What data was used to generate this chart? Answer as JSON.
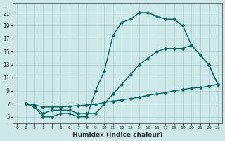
{
  "xlabel": "Humidex (Indice chaleur)",
  "bg_color": "#cce8e8",
  "line_color": "#006666",
  "grid_color": "#aacccc",
  "xlim": [
    -0.5,
    23.5
  ],
  "ylim": [
    4,
    22.5
  ],
  "xticks": [
    0,
    1,
    2,
    3,
    4,
    5,
    6,
    7,
    8,
    9,
    10,
    11,
    12,
    13,
    14,
    15,
    16,
    17,
    18,
    19,
    20,
    21,
    22,
    23
  ],
  "yticks": [
    5,
    7,
    9,
    11,
    13,
    15,
    17,
    19,
    21
  ],
  "curve1_x": [
    1,
    2,
    3,
    4,
    5,
    6,
    7,
    8,
    9,
    10,
    11,
    12,
    13,
    14,
    15,
    16,
    17,
    18,
    19,
    20,
    21,
    22,
    23
  ],
  "curve1_y": [
    7,
    6.5,
    5,
    5,
    5.5,
    5.5,
    5,
    5,
    9,
    12,
    17.5,
    19.5,
    20,
    21,
    21,
    20.5,
    20,
    20,
    19,
    16,
    14.5,
    13,
    10
  ],
  "curve2_x": [
    1,
    2,
    3,
    4,
    5,
    6,
    7,
    8,
    9,
    10,
    11,
    12,
    13,
    14,
    15,
    16,
    17,
    18,
    19,
    20,
    21,
    22,
    23
  ],
  "curve2_y": [
    7,
    6.5,
    5.5,
    6,
    6,
    6,
    5.5,
    5.5,
    5.5,
    7,
    8.5,
    10,
    11.5,
    13,
    14,
    15,
    15.5,
    15.5,
    15.5,
    16,
    14.5,
    13,
    10
  ],
  "curve3_x": [
    1,
    2,
    3,
    4,
    5,
    6,
    7,
    8,
    9,
    10,
    11,
    12,
    13,
    14,
    15,
    16,
    17,
    18,
    19,
    20,
    21,
    22,
    23
  ],
  "curve3_y": [
    7,
    6.8,
    6.5,
    6.5,
    6.5,
    6.6,
    6.7,
    6.8,
    6.9,
    7.2,
    7.4,
    7.6,
    7.8,
    8.0,
    8.3,
    8.5,
    8.7,
    9.0,
    9.2,
    9.4,
    9.5,
    9.7,
    10
  ],
  "marker_size": 2.5,
  "lw": 1.0
}
